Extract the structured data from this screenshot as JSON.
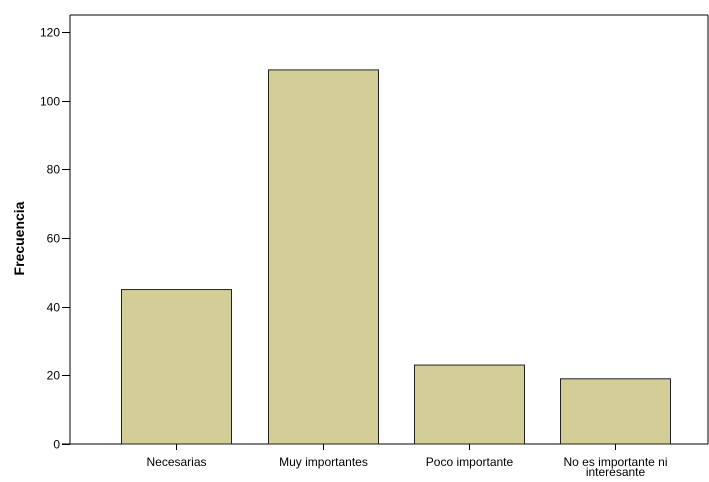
{
  "chart_data": {
    "type": "bar",
    "title": "",
    "xlabel": "",
    "ylabel": "Frecuencia",
    "ylim": [
      0,
      125
    ],
    "yticks": [
      0,
      20,
      40,
      60,
      80,
      100,
      120
    ],
    "grid": false,
    "legend": "none",
    "categories": [
      "Necesarias",
      "Muy importantes",
      "Poco importante",
      "No es importante ni interesante"
    ],
    "values": [
      45,
      109,
      23,
      19
    ],
    "colors": {
      "bar_fill": "#d3ce97",
      "bar_stroke": "#222222",
      "axis": "#000000"
    }
  }
}
